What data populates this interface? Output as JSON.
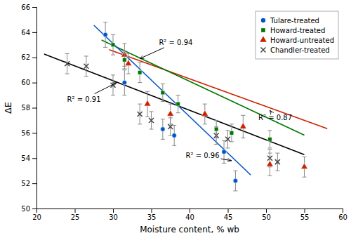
{
  "chart_data": {
    "type": "scatter",
    "xlabel": "Moisture content, % wb",
    "ylabel": "ΔE",
    "xlim": [
      20,
      60
    ],
    "ylim": [
      50,
      66
    ],
    "xticks": [
      20,
      25,
      30,
      35,
      40,
      45,
      50,
      55,
      60
    ],
    "yticks": [
      50,
      52,
      54,
      56,
      58,
      60,
      62,
      64,
      66
    ],
    "legend": "upper right",
    "series": [
      {
        "name": "Tulare-treated",
        "color": "#0055cc",
        "marker": "circle",
        "x": [
          29.0,
          31.5,
          36.5,
          38.0,
          44.5,
          46.0
        ],
        "values": [
          63.8,
          60.0,
          56.3,
          55.8,
          54.5,
          52.2
        ],
        "errors": [
          1.0,
          1.0,
          0.8,
          0.8,
          0.9,
          0.8
        ],
        "fit": {
          "x": [
            27.5,
            48.0
          ],
          "values": [
            64.55,
            52.66
          ],
          "color": "#0055cc"
        }
      },
      {
        "name": "Howard-treated",
        "color": "#007700",
        "marker": "square",
        "x": [
          30.0,
          31.5,
          33.5,
          36.5,
          38.5,
          43.5,
          45.5,
          50.5
        ],
        "values": [
          63.0,
          61.8,
          60.8,
          59.2,
          58.3,
          56.3,
          56.0,
          55.5
        ],
        "errors": [
          0.8,
          0.7,
          0.8,
          0.7,
          0.7,
          0.7,
          0.7,
          0.7
        ],
        "fit": {
          "x": [
            28.5,
            55.0
          ],
          "values": [
            63.3775,
            55.825
          ],
          "color": "#007700"
        }
      },
      {
        "name": "Howard-untreated",
        "color": "#cc2200",
        "marker": "triangle",
        "x": [
          31.5,
          32.0,
          34.5,
          37.5,
          42.0,
          47.0,
          50.5,
          55.0
        ],
        "values": [
          62.2,
          61.5,
          58.3,
          57.5,
          57.5,
          56.5,
          53.5,
          53.3
        ],
        "errors": [
          0.9,
          0.8,
          1.0,
          0.8,
          0.8,
          0.9,
          0.9,
          0.8
        ],
        "fit": {
          "x": [
            29.5,
            58.0
          ],
          "values": [
            62.61,
            56.34
          ],
          "color": "#cc2200"
        }
      },
      {
        "name": "Chandler-treated",
        "color": "#444444",
        "marker": "x",
        "x": [
          24.0,
          26.5,
          30.0,
          33.5,
          35.0,
          37.5,
          43.5,
          45.0,
          50.5,
          51.5
        ],
        "values": [
          61.5,
          61.3,
          59.8,
          57.5,
          57.0,
          56.5,
          55.8,
          55.5,
          54.0,
          53.7
        ],
        "errors": [
          0.8,
          0.8,
          0.8,
          0.8,
          0.7,
          0.7,
          0.7,
          0.7,
          0.7,
          0.7
        ],
        "fit": {
          "x": [
            21.0,
            55.0
          ],
          "values": [
            62.265,
            54.275
          ],
          "color": "#000000"
        }
      }
    ],
    "annotations": [
      {
        "text": "R² = 0.96",
        "x": 45.5,
        "y": 53.8,
        "text_x": 39.5,
        "text_y": 54.0
      },
      {
        "text": "R² = 0.94",
        "x": 33.5,
        "y": 61.9,
        "text_x": 36.0,
        "text_y": 63.0
      },
      {
        "text": "R² = 0.87",
        "x": 50.5,
        "y": 57.8,
        "text_x": 49.0,
        "text_y": 57.0
      },
      {
        "text": "R² = 0.91",
        "x": 30.5,
        "y": 60.0,
        "text_x": 24.0,
        "text_y": 58.5
      }
    ]
  }
}
